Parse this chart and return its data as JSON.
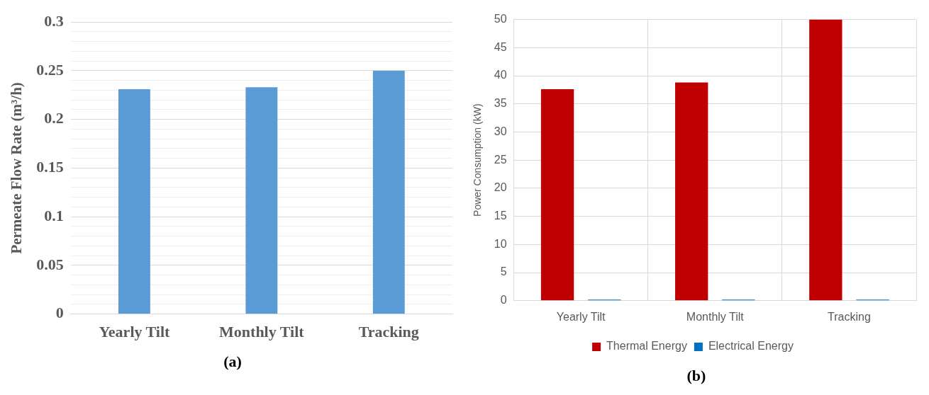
{
  "chart_data": [
    {
      "type": "bar",
      "categories": [
        "Yearly Tilt",
        "Monthly Tilt",
        "Tracking"
      ],
      "values": [
        0.231,
        0.233,
        0.25
      ],
      "color": "#5b9bd5",
      "ylabel": "Permeate Flow Rate (m³/h)",
      "ylim": [
        0,
        0.3
      ],
      "yticks": [
        0,
        {
          "value": 0.01,
          "label": null
        },
        {
          "value": 0.02,
          "label": null
        },
        {
          "value": 0.03,
          "label": null
        },
        {
          "value": 0.04,
          "label": null
        },
        0.05,
        {
          "value": 0.06,
          "label": null
        },
        {
          "value": 0.07,
          "label": null
        },
        {
          "value": 0.08,
          "label": null
        },
        {
          "value": 0.09,
          "label": null
        },
        0.1,
        {
          "value": 0.11,
          "label": null
        },
        {
          "value": 0.12,
          "label": null
        },
        {
          "value": 0.13,
          "label": null
        },
        {
          "value": 0.14,
          "label": null
        },
        0.15,
        {
          "value": 0.16,
          "label": null
        },
        {
          "value": 0.17,
          "label": null
        },
        {
          "value": 0.18,
          "label": null
        },
        {
          "value": 0.19,
          "label": null
        },
        0.2,
        {
          "value": 0.21,
          "label": null
        },
        {
          "value": 0.22,
          "label": null
        },
        {
          "value": 0.23,
          "label": null
        },
        {
          "value": 0.24,
          "label": null
        },
        0.25,
        {
          "value": 0.26,
          "label": null
        },
        {
          "value": 0.27,
          "label": null
        },
        {
          "value": 0.28,
          "label": null
        },
        {
          "value": 0.29,
          "label": null
        },
        0.3
      ],
      "grid": "y",
      "annotations": [
        "(a)"
      ]
    },
    {
      "type": "bar",
      "categories": [
        "Yearly Tilt",
        "Monthly Tilt",
        "Tracking"
      ],
      "series": [
        {
          "name": "Thermal Energy",
          "color": "#c00000",
          "values": [
            37.6,
            38.8,
            50
          ]
        },
        {
          "name": "Electrical Energy",
          "color": "#0070c0",
          "values": [
            0.2,
            0.2,
            0.2
          ]
        }
      ],
      "ylabel": "Power Consumption (kW)",
      "ylim": [
        0,
        50
      ],
      "yticks": [
        0,
        5,
        10,
        15,
        20,
        25,
        30,
        35,
        40,
        45,
        50
      ],
      "grid": true,
      "legend": "bottom",
      "annotations": [
        "(b)"
      ]
    }
  ]
}
